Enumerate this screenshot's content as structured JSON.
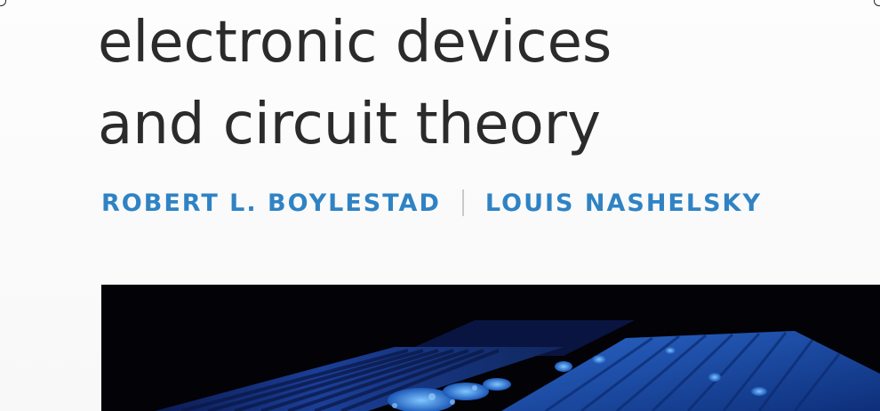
{
  "cover": {
    "title_line_1": "electronic devices",
    "title_line_2": "and circuit theory",
    "author_1": "ROBERT L. BOYLESTAD",
    "author_2": "LOUIS NASHELSKY"
  },
  "colors": {
    "title_text": "#2b2b2b",
    "author_text": "#2f83c4",
    "separator": "#c9c9c9",
    "image_background": "#020207",
    "image_blue_dark": "#1b3f98",
    "image_blue_light": "#3a8fe0"
  },
  "icons": {
    "corner_markers": "circle-marker-icon"
  }
}
